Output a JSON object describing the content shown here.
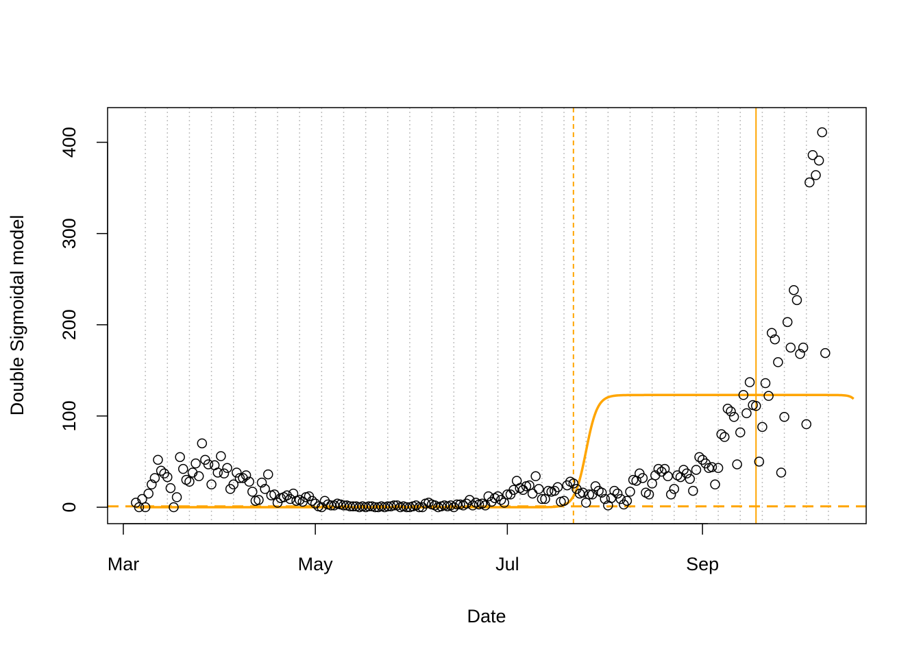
{
  "colors": {
    "accent": "#FFA500",
    "grid": "#BEBEBE",
    "points": "#000000"
  },
  "chart_data": {
    "type": "scatter",
    "title": "",
    "xlabel": "Date",
    "ylabel": "Double Sigmoidal model",
    "xlim": [
      "2020-02-25",
      "2020-10-23"
    ],
    "ylim": [
      -18,
      438
    ],
    "yticks": [
      0,
      100,
      200,
      300,
      400
    ],
    "xticks": [
      {
        "date": "2020-03-01",
        "label": "Mar"
      },
      {
        "date": "2020-05-01",
        "label": "May"
      },
      {
        "date": "2020-07-01",
        "label": "Jul"
      },
      {
        "date": "2020-09-01",
        "label": "Sep"
      }
    ],
    "weekly_gridlines": [
      "2020-03-08",
      "2020-03-15",
      "2020-03-22",
      "2020-03-29",
      "2020-04-05",
      "2020-04-12",
      "2020-04-19",
      "2020-04-26",
      "2020-05-03",
      "2020-05-10",
      "2020-05-17",
      "2020-05-24",
      "2020-05-31",
      "2020-06-07",
      "2020-06-14",
      "2020-06-21",
      "2020-06-28",
      "2020-07-05",
      "2020-07-12",
      "2020-07-19",
      "2020-07-26",
      "2020-08-02",
      "2020-08-09",
      "2020-08-16",
      "2020-08-23",
      "2020-08-30",
      "2020-09-06",
      "2020-09-13",
      "2020-09-20",
      "2020-09-27",
      "2020-10-04",
      "2020-10-11"
    ],
    "reference_lines": {
      "dashed_vertical_date": "2020-07-22",
      "solid_vertical_date": "2020-09-18",
      "dashed_horizontal_value": 1
    },
    "points": {
      "start_date": "2020-03-05",
      "values": [
        5,
        0,
        9,
        0,
        15,
        25,
        32,
        52,
        40,
        37,
        33,
        21,
        0,
        11,
        55,
        42,
        30,
        28,
        38,
        48,
        34,
        70,
        52,
        47,
        25,
        46,
        38,
        56,
        37,
        43,
        20,
        25,
        38,
        32,
        32,
        35,
        28,
        17,
        7,
        8,
        27,
        20,
        36,
        13,
        14,
        5,
        10,
        11,
        13,
        9,
        15,
        7,
        8,
        6,
        11,
        12,
        7,
        4,
        1,
        0,
        7,
        3,
        2,
        2,
        4,
        3,
        2,
        2,
        1,
        1,
        1,
        0,
        1,
        0,
        1,
        1,
        0,
        0,
        1,
        0,
        1,
        1,
        2,
        2,
        0,
        1,
        0,
        0,
        1,
        2,
        0,
        0,
        4,
        5,
        3,
        2,
        0,
        1,
        2,
        1,
        2,
        0,
        3,
        3,
        2,
        4,
        8,
        2,
        5,
        3,
        4,
        2,
        12,
        6,
        10,
        12,
        8,
        5,
        14,
        14,
        19,
        29,
        21,
        19,
        23,
        24,
        15,
        34,
        20,
        9,
        9,
        18,
        17,
        18,
        22,
        6,
        7,
        24,
        28,
        26,
        20,
        15,
        16,
        5,
        14,
        14,
        23,
        18,
        16,
        9,
        2,
        10,
        18,
        15,
        9,
        3,
        7,
        17,
        30,
        29,
        37,
        32,
        16,
        14,
        26,
        35,
        42,
        39,
        42,
        34,
        14,
        20,
        35,
        33,
        41,
        37,
        31,
        18,
        41,
        55,
        52,
        48,
        43,
        44,
        25,
        43,
        80,
        77,
        108,
        105,
        99,
        47,
        82,
        123,
        103,
        137,
        112,
        111,
        50,
        88,
        136,
        122,
        191,
        184,
        159,
        38,
        99,
        203,
        175,
        238,
        227,
        168,
        175,
        91,
        356,
        386,
        364,
        380,
        411,
        169
      ]
    },
    "fitted_curve": {
      "type": "double-sigmoid",
      "baseline": 0,
      "rise": {
        "amplitude": 123,
        "midpoint": "2020-07-26",
        "scale_days": 1.8
      },
      "decline": {
        "midpoint": "2020-10-23",
        "scale_days": 1.2
      },
      "start_date": "2020-03-05",
      "end_date": "2020-10-19"
    }
  }
}
